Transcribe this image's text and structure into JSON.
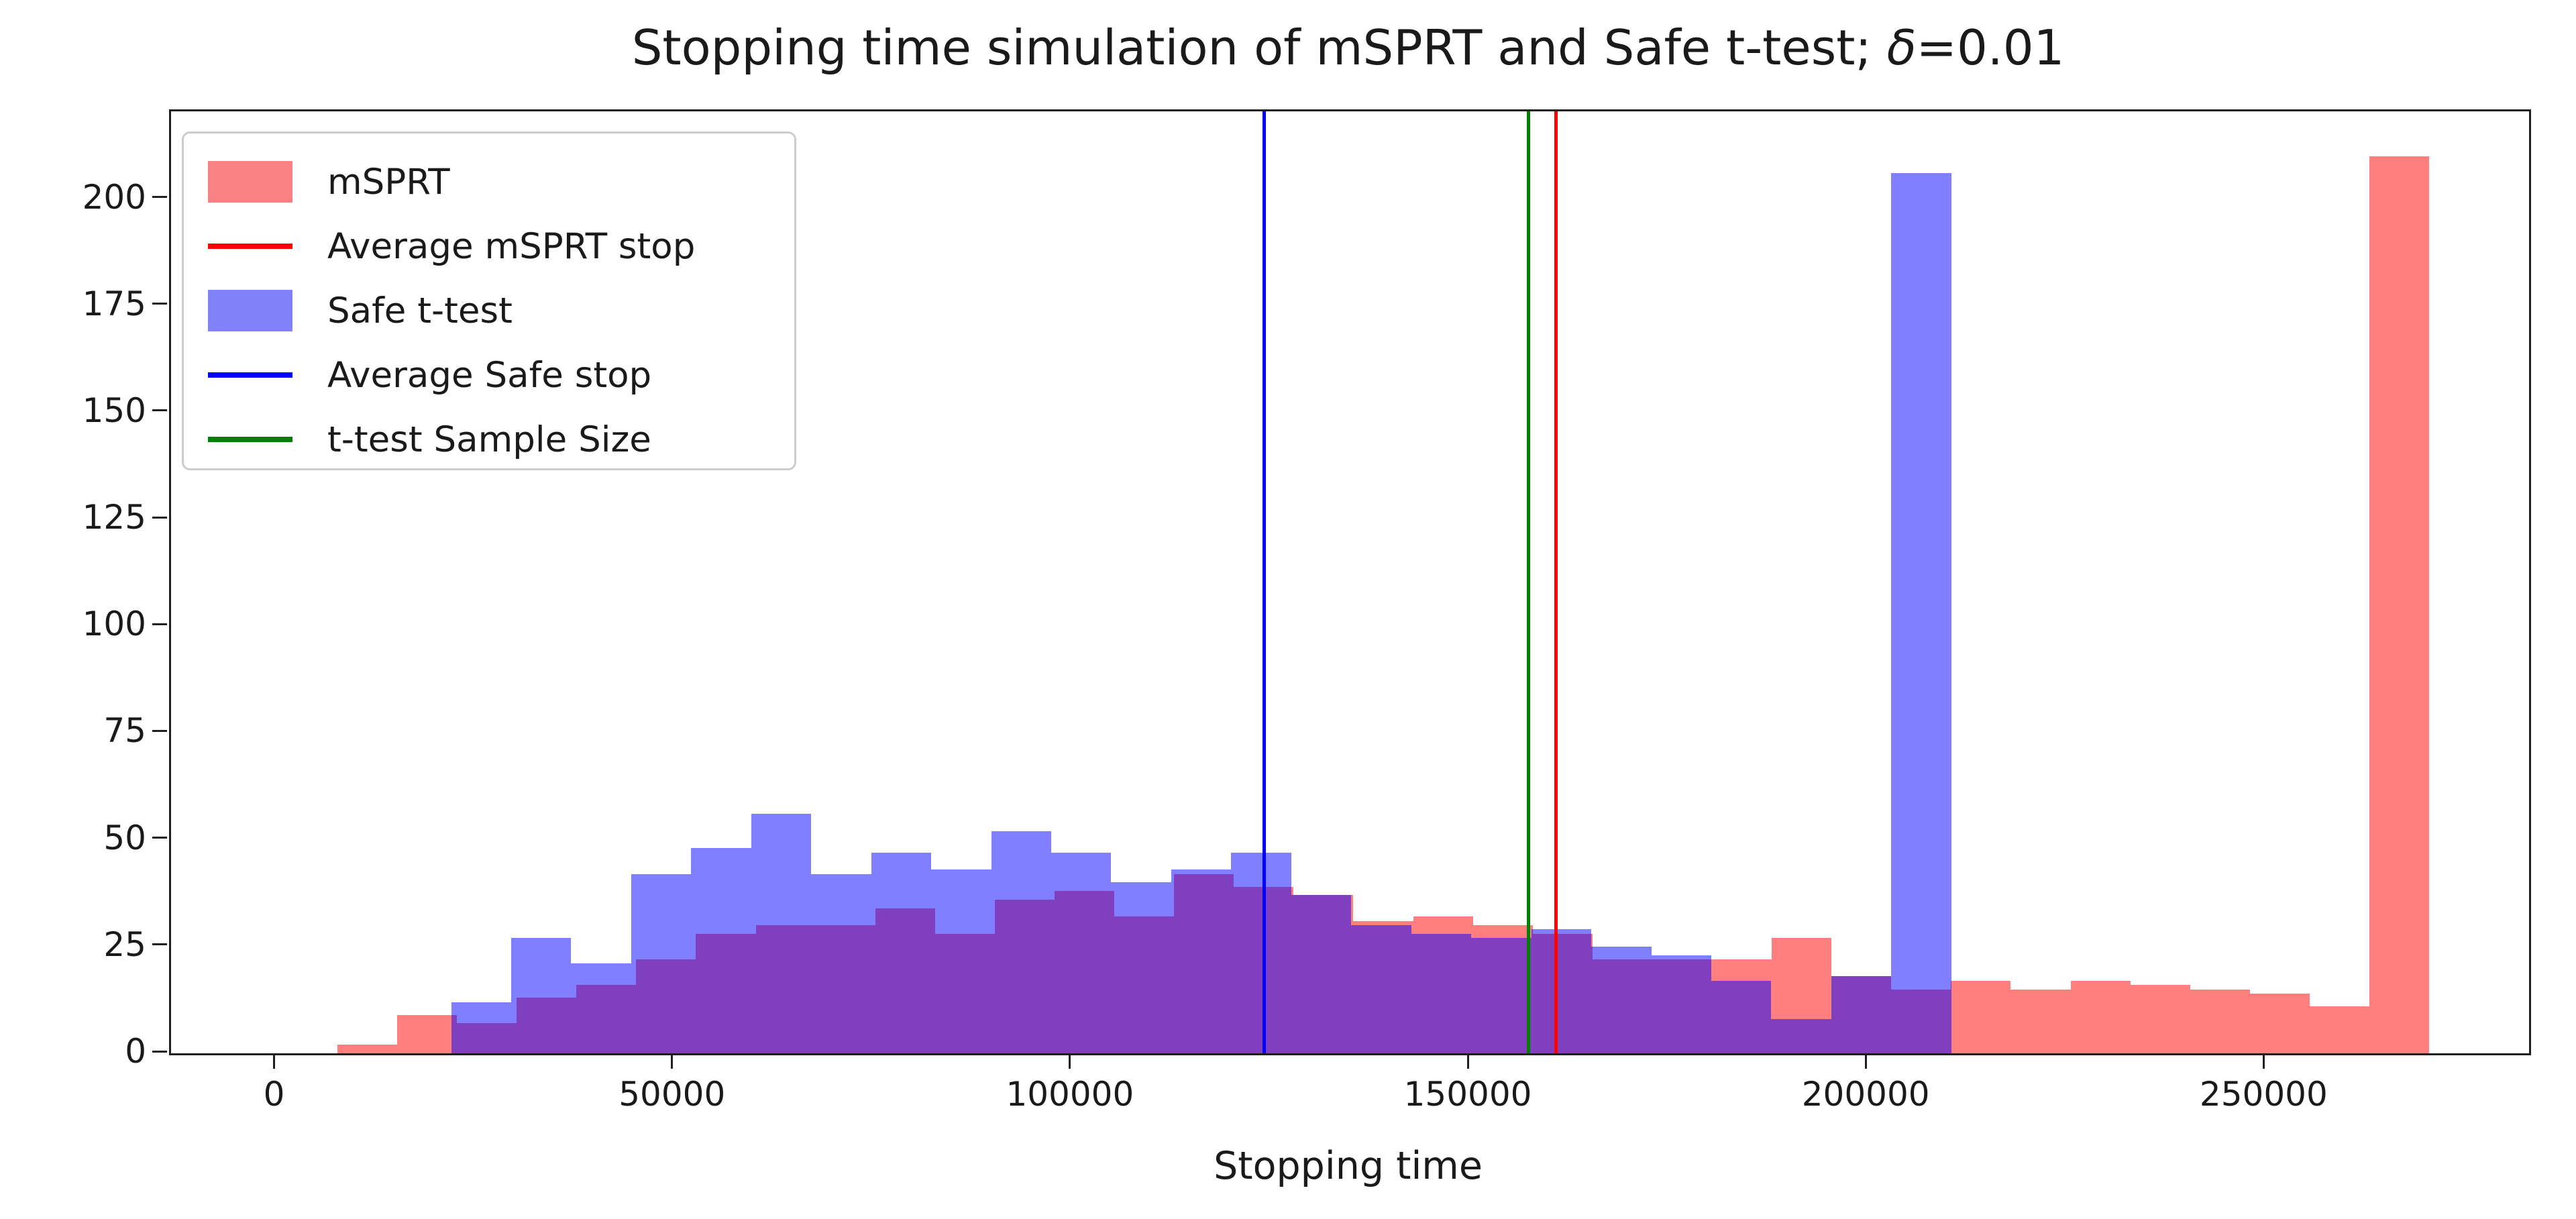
{
  "chart_data": {
    "type": "histogram",
    "title": "Stopping time simulation of mSPRT and Safe t-test; δ=0.01",
    "title_parts": {
      "main": "Stopping time simulation of mSPRT and Safe t-test; ",
      "delta": "δ",
      "value": "=0.01"
    },
    "xlabel": "Stopping time",
    "ylabel": "",
    "xlim": [
      -13200,
      283100
    ],
    "ylim": [
      0,
      220.5
    ],
    "xticks": [
      0,
      50000,
      100000,
      150000,
      200000,
      250000
    ],
    "yticks": [
      0,
      25,
      50,
      75,
      100,
      125,
      150,
      175,
      200
    ],
    "grid": false,
    "legend_position": "upper-left",
    "series": [
      {
        "name": "mSPRT",
        "kind": "histogram",
        "color": "rgba(255,0,0,0.5)",
        "bin_start": 7700,
        "bin_width": 7510,
        "counts": [
          2,
          9,
          7,
          13,
          16,
          22,
          28,
          30,
          30,
          34,
          28,
          36,
          38,
          32,
          42,
          39,
          37,
          31,
          32,
          30,
          28,
          22,
          22,
          22,
          27,
          18,
          15,
          17,
          15,
          17,
          16,
          15,
          14,
          11,
          210
        ]
      },
      {
        "name": "Safe t-test",
        "kind": "histogram",
        "color": "rgba(0,0,255,0.5)",
        "bin_start": 22000,
        "bin_width": 7540,
        "counts": [
          12,
          27,
          21,
          42,
          48,
          56,
          42,
          47,
          43,
          52,
          47,
          40,
          43,
          47,
          37,
          30,
          28,
          27,
          29,
          25,
          23,
          17,
          8,
          18,
          206
        ]
      }
    ],
    "vlines": [
      {
        "name": "Average Safe stop",
        "x": 124200,
        "color": "#0000ff"
      },
      {
        "name": "t-test Sample Size",
        "x": 157400,
        "color": "#008000"
      },
      {
        "name": "Average mSPRT stop",
        "x": 160800,
        "color": "#ff0000"
      }
    ],
    "legend": [
      {
        "label": "mSPRT",
        "swatch": "patch",
        "color": "#f98181"
      },
      {
        "label": "Average mSPRT stop",
        "swatch": "line",
        "color": "#ff0000"
      },
      {
        "label": "Safe t-test",
        "swatch": "patch",
        "color": "#8181f9"
      },
      {
        "label": "Average Safe stop",
        "swatch": "line",
        "color": "#0000ff"
      },
      {
        "label": "t-test Sample Size",
        "swatch": "line",
        "color": "#008000"
      }
    ]
  }
}
